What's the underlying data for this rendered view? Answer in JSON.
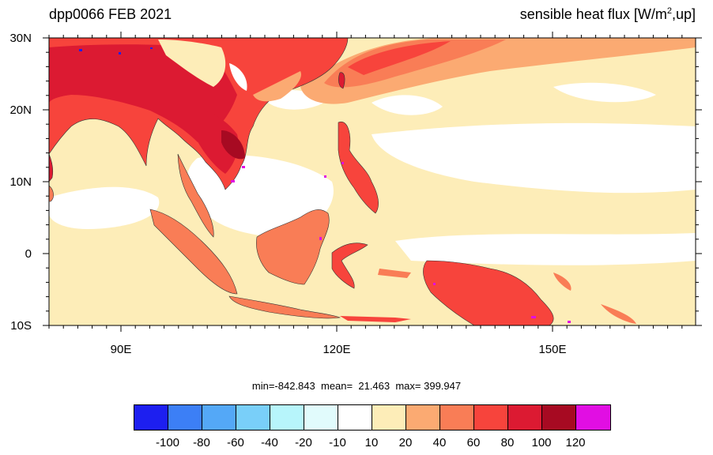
{
  "header": {
    "title": "dpp0066 FEB 2021",
    "variable": "sensible heat flux [W/m",
    "variable_sup": "2",
    "variable_tail": ",up]"
  },
  "axes": {
    "lat_labels": [
      "30N",
      "20N",
      "10N",
      "0",
      "10S"
    ],
    "lon_labels": [
      "90E",
      "120E",
      "150E"
    ]
  },
  "stats": {
    "min_label": "min=-842.843",
    "mean_label": "mean=  21.463",
    "max_label": "max= 399.947"
  },
  "colorbar": {
    "colors": [
      "#1d1ff0",
      "#3c7ff6",
      "#54a8f7",
      "#79cff9",
      "#b7f5fb",
      "#e1fbfc",
      "#ffffff",
      "#fdedb8",
      "#fbaa72",
      "#f97d56",
      "#f7443c",
      "#dc1a32",
      "#a70a22",
      "#e10ee3"
    ],
    "labels": [
      "-100",
      "-80",
      "-60",
      "-40",
      "-20",
      "-10",
      "10",
      "20",
      "40",
      "60",
      "80",
      "100",
      "120"
    ]
  }
}
